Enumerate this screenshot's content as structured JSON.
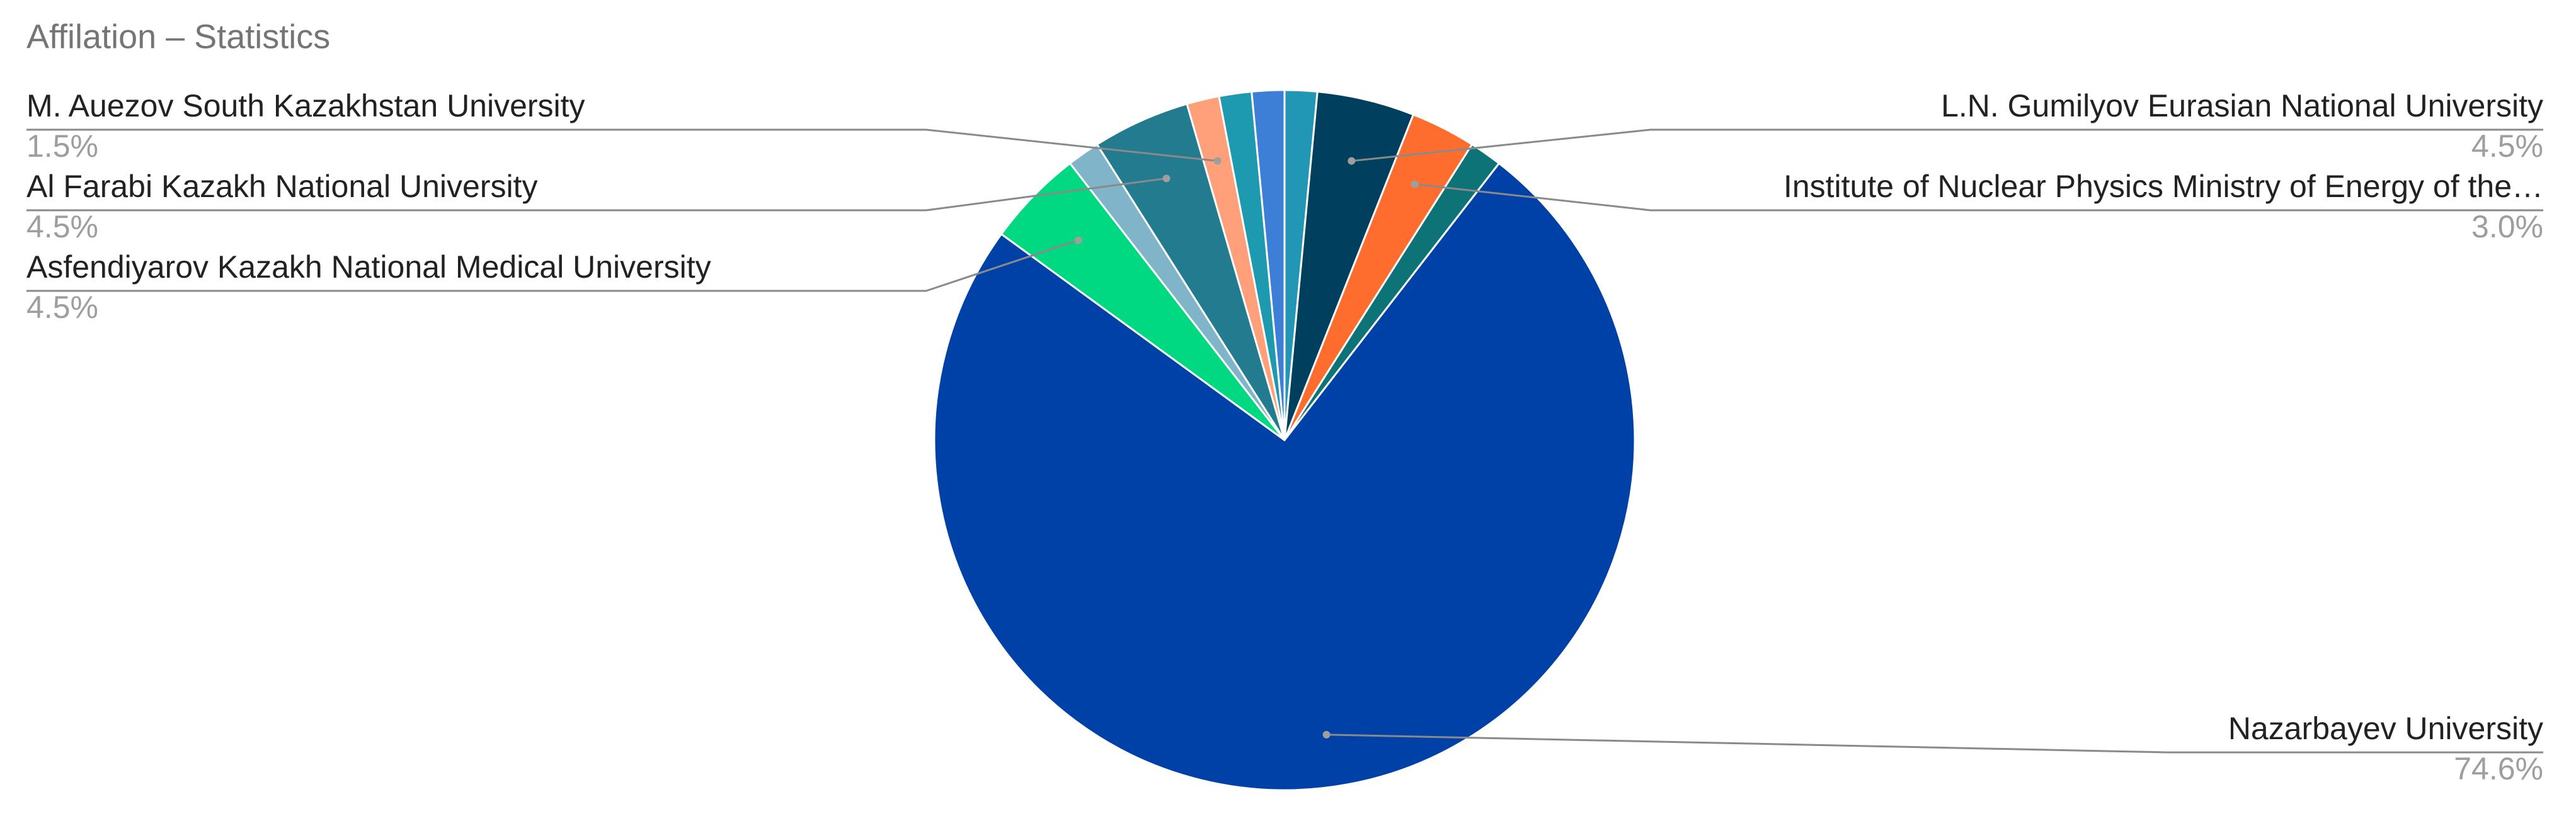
{
  "chart_data": {
    "type": "pie",
    "title": "Affilation – Statistics",
    "categories": [
      null,
      "L.N. Gumilyov Eurasian National University",
      "Institute of Nuclear Physics Ministry of Energy of the…",
      null,
      "Nazarbayev University",
      "Asfendiyarov Kazakh National Medical University",
      null,
      "Al Farabi Kazakh National University",
      "M. Auezov South Kazakhstan University",
      null,
      null
    ],
    "values": [
      1.5,
      4.5,
      3.0,
      1.5,
      74.6,
      4.5,
      1.5,
      4.5,
      1.5,
      1.5,
      1.5
    ],
    "value_labels": [
      null,
      "4.5%",
      "3.0%",
      null,
      "74.6%",
      "4.5%",
      null,
      "4.5%",
      "1.5%",
      null,
      null
    ],
    "colors": [
      "#2196b5",
      "#00405e",
      "#ff6d2e",
      "#0d7377",
      "#0041a8",
      "#00d982",
      "#80b4c8",
      "#237b8f",
      "#ffa07a",
      "#1d9ab0",
      "#3d7fd6"
    ]
  }
}
